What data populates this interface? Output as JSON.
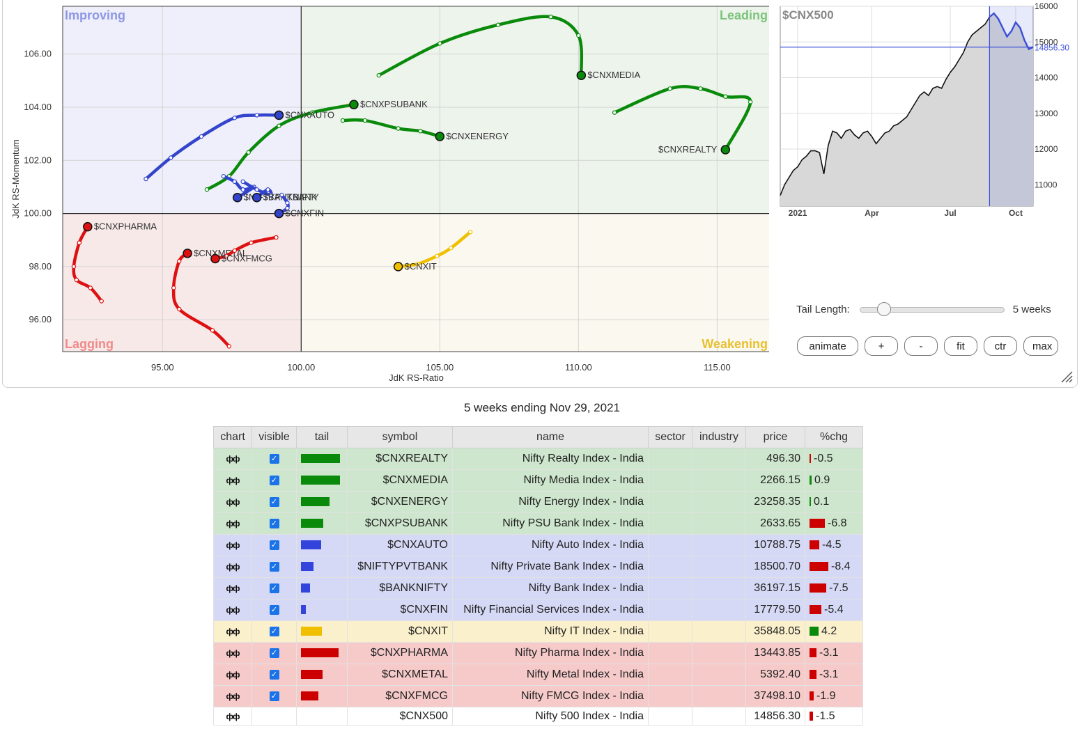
{
  "rrg": {
    "quadrants": {
      "improving": "Improving",
      "leading": "Leading",
      "lagging": "Lagging",
      "weakening": "Weakening"
    },
    "x_axis_label": "JdK RS-Ratio",
    "y_axis_label": "JdK RS-Momentum",
    "x_ticks": [
      "95.00",
      "100.00",
      "105.00",
      "110.00",
      "115.00"
    ],
    "y_ticks": [
      "106.00",
      "104.00",
      "102.00",
      "100.00",
      "98.00",
      "96.00"
    ]
  },
  "chart_data": {
    "type": "scatter",
    "xlim": [
      91.4,
      116.9
    ],
    "ylim": [
      94.8,
      107.8
    ],
    "x_center": 100,
    "y_center": 100,
    "grid": true,
    "series": [
      {
        "name": "$CNXMEDIA",
        "color": "#0a8a0a",
        "points": [
          [
            102.8,
            105.2
          ],
          [
            105.0,
            106.4
          ],
          [
            107.1,
            107.1
          ],
          [
            109.0,
            107.4
          ],
          [
            110.0,
            106.7
          ],
          [
            110.1,
            105.2
          ]
        ]
      },
      {
        "name": "$CNXREALTY",
        "color": "#0a8a0a",
        "points": [
          [
            111.3,
            103.8
          ],
          [
            113.3,
            104.7
          ],
          [
            114.4,
            104.7
          ],
          [
            115.3,
            104.4
          ],
          [
            116.2,
            104.2
          ],
          [
            115.3,
            102.4
          ]
        ]
      },
      {
        "name": "$CNXPSUBANK",
        "color": "#0a8a0a",
        "points": [
          [
            96.6,
            100.9
          ],
          [
            97.4,
            101.4
          ],
          [
            98.1,
            102.3
          ],
          [
            99.2,
            103.3
          ],
          [
            100.4,
            103.8
          ],
          [
            101.9,
            104.1
          ]
        ]
      },
      {
        "name": "$CNXENERGY",
        "color": "#0a8a0a",
        "points": [
          [
            101.5,
            103.5
          ],
          [
            102.3,
            103.5
          ],
          [
            103.5,
            103.2
          ],
          [
            104.3,
            103.1
          ],
          [
            105.0,
            102.9
          ]
        ]
      },
      {
        "name": "$CNXAUTO",
        "color": "#3344cc",
        "points": [
          [
            94.4,
            101.3
          ],
          [
            95.3,
            102.1
          ],
          [
            96.4,
            102.9
          ],
          [
            97.6,
            103.6
          ],
          [
            98.4,
            103.7
          ],
          [
            99.2,
            103.7
          ]
        ]
      },
      {
        "name": "$NIFTYPVTBANK",
        "color": "#3344cc",
        "points": [
          [
            97.2,
            101.4
          ],
          [
            97.6,
            101.2
          ],
          [
            97.9,
            100.9
          ],
          [
            98.3,
            101.0
          ],
          [
            97.7,
            100.6
          ]
        ]
      },
      {
        "name": "$BANKNIFTY",
        "color": "#3344cc",
        "points": [
          [
            97.9,
            101.2
          ],
          [
            98.4,
            100.9
          ],
          [
            98.9,
            100.7
          ],
          [
            98.8,
            100.9
          ],
          [
            98.4,
            100.6
          ]
        ]
      },
      {
        "name": "$CNXFIN",
        "color": "#3344cc",
        "points": [
          [
            99.3,
            100.7
          ],
          [
            99.5,
            100.4
          ],
          [
            99.5,
            100.2
          ],
          [
            99.2,
            100.0
          ]
        ]
      },
      {
        "name": "$CNXIT",
        "color": "#f0c000",
        "points": [
          [
            106.1,
            99.3
          ],
          [
            105.4,
            98.7
          ],
          [
            104.9,
            98.4
          ],
          [
            104.2,
            98.1
          ],
          [
            103.5,
            98.0
          ]
        ]
      },
      {
        "name": "$CNXPHARMA",
        "color": "#dd1111",
        "points": [
          [
            92.8,
            96.7
          ],
          [
            92.4,
            97.2
          ],
          [
            91.9,
            97.5
          ],
          [
            91.8,
            98.0
          ],
          [
            92.0,
            98.9
          ],
          [
            92.3,
            99.5
          ]
        ]
      },
      {
        "name": "$CNXMETAL",
        "color": "#dd1111",
        "points": [
          [
            97.4,
            95.0
          ],
          [
            96.8,
            95.6
          ],
          [
            95.6,
            96.4
          ],
          [
            95.4,
            97.2
          ],
          [
            95.6,
            98.2
          ],
          [
            95.9,
            98.5
          ]
        ]
      },
      {
        "name": "$CNXFMCG",
        "color": "#dd1111",
        "points": [
          [
            99.1,
            99.1
          ],
          [
            98.2,
            98.9
          ],
          [
            97.6,
            98.6
          ],
          [
            97.3,
            98.4
          ],
          [
            96.9,
            98.3
          ]
        ]
      }
    ],
    "price_panel": {
      "symbol": "$CNX500",
      "current": "14856.30",
      "y_ticks": [
        "16000",
        "15000",
        "14000",
        "13000",
        "12000",
        "11000"
      ],
      "x_ticks": [
        "2021",
        "Apr",
        "Jul",
        "Oct"
      ],
      "ylim": [
        10400,
        16000
      ],
      "values": [
        10700,
        11000,
        11200,
        11400,
        11500,
        11700,
        11800,
        11950,
        11950,
        11900,
        11300,
        12100,
        12500,
        12450,
        12300,
        12500,
        12550,
        12400,
        12300,
        12450,
        12500,
        12350,
        12150,
        12300,
        12450,
        12500,
        12650,
        12700,
        12800,
        12900,
        13100,
        13300,
        13500,
        13600,
        13500,
        13700,
        13750,
        13700,
        13950,
        14150,
        14300,
        14500,
        14700,
        15000,
        15200,
        15300,
        15400,
        15500,
        15700,
        15800,
        15650,
        15400,
        15150,
        15300,
        15550,
        15400,
        15050,
        14800,
        14856
      ]
    }
  },
  "controls": {
    "tail_length_label": "Tail Length:",
    "tail_length_value": "5 weeks",
    "tail_weeks": 5,
    "buttons": [
      "animate",
      "+",
      "-",
      "fit",
      "ctr",
      "max"
    ]
  },
  "caption": "5 weeks ending Nov 29, 2021",
  "table": {
    "headers": [
      "chart",
      "visible",
      "tail",
      "symbol",
      "name",
      "sector",
      "industry",
      "price",
      "%chg"
    ],
    "rows": [
      {
        "symbol": "$CNXREALTY",
        "name": "Nifty Realty Index - India",
        "price": "496.30",
        "chg": "-0.5",
        "bg": "#cde6cd",
        "tail_color": "#0a8a0a",
        "tail_len": 1.0,
        "chg_val": -0.5
      },
      {
        "symbol": "$CNXMEDIA",
        "name": "Nifty Media Index - India",
        "price": "2266.15",
        "chg": "0.9",
        "bg": "#cde6cd",
        "tail_color": "#0a8a0a",
        "tail_len": 1.0,
        "chg_val": 0.9
      },
      {
        "symbol": "$CNXENERGY",
        "name": "Nifty Energy Index - India",
        "price": "23258.35",
        "chg": "0.1",
        "bg": "#cde6cd",
        "tail_color": "#0a8a0a",
        "tail_len": 0.73,
        "chg_val": 0.1
      },
      {
        "symbol": "$CNXPSUBANK",
        "name": "Nifty PSU Bank Index - India",
        "price": "2633.65",
        "chg": "-6.8",
        "bg": "#cde6cd",
        "tail_color": "#0a8a0a",
        "tail_len": 0.58,
        "chg_val": -6.8
      },
      {
        "symbol": "$CNXAUTO",
        "name": "Nifty Auto Index - India",
        "price": "10788.75",
        "chg": "-4.5",
        "bg": "#d6d9f5",
        "tail_color": "#3344dd",
        "tail_len": 0.51,
        "chg_val": -4.5
      },
      {
        "symbol": "$NIFTYPVTBANK",
        "name": "Nifty Private Bank Index - India",
        "price": "18500.70",
        "chg": "-8.4",
        "bg": "#d6d9f5",
        "tail_color": "#3344dd",
        "tail_len": 0.33,
        "chg_val": -8.4
      },
      {
        "symbol": "$BANKNIFTY",
        "name": "Nifty Bank Index - India",
        "price": "36197.15",
        "chg": "-7.5",
        "bg": "#d6d9f5",
        "tail_color": "#3344dd",
        "tail_len": 0.24,
        "chg_val": -7.5
      },
      {
        "symbol": "$CNXFIN",
        "name": "Nifty Financial Services Index - India",
        "price": "17779.50",
        "chg": "-5.4",
        "bg": "#d6d9f5",
        "tail_color": "#3344dd",
        "tail_len": 0.13,
        "chg_val": -5.4
      },
      {
        "symbol": "$CNXIT",
        "name": "Nifty IT Index - India",
        "price": "35848.05",
        "chg": "4.2",
        "bg": "#fbf0cc",
        "tail_color": "#f0c000",
        "tail_len": 0.53,
        "chg_val": 4.2
      },
      {
        "symbol": "$CNXPHARMA",
        "name": "Nifty Pharma Index - India",
        "price": "13443.85",
        "chg": "-3.1",
        "bg": "#f7caca",
        "tail_color": "#cc0000",
        "tail_len": 0.96,
        "chg_val": -3.1
      },
      {
        "symbol": "$CNXMETAL",
        "name": "Nifty Metal Index - India",
        "price": "5392.40",
        "chg": "-3.1",
        "bg": "#f7caca",
        "tail_color": "#cc0000",
        "tail_len": 0.56,
        "chg_val": -3.1
      },
      {
        "symbol": "$CNXFMCG",
        "name": "Nifty FMCG Index - India",
        "price": "37498.10",
        "chg": "-1.9",
        "bg": "#f7caca",
        "tail_color": "#cc0000",
        "tail_len": 0.45,
        "chg_val": -1.9
      },
      {
        "symbol": "$CNX500",
        "name": "Nifty 500 Index - India",
        "price": "14856.30",
        "chg": "-1.5",
        "bg": "#ffffff",
        "tail_color": "",
        "tail_len": 0,
        "chg_val": -1.5,
        "benchmark": true
      }
    ]
  }
}
